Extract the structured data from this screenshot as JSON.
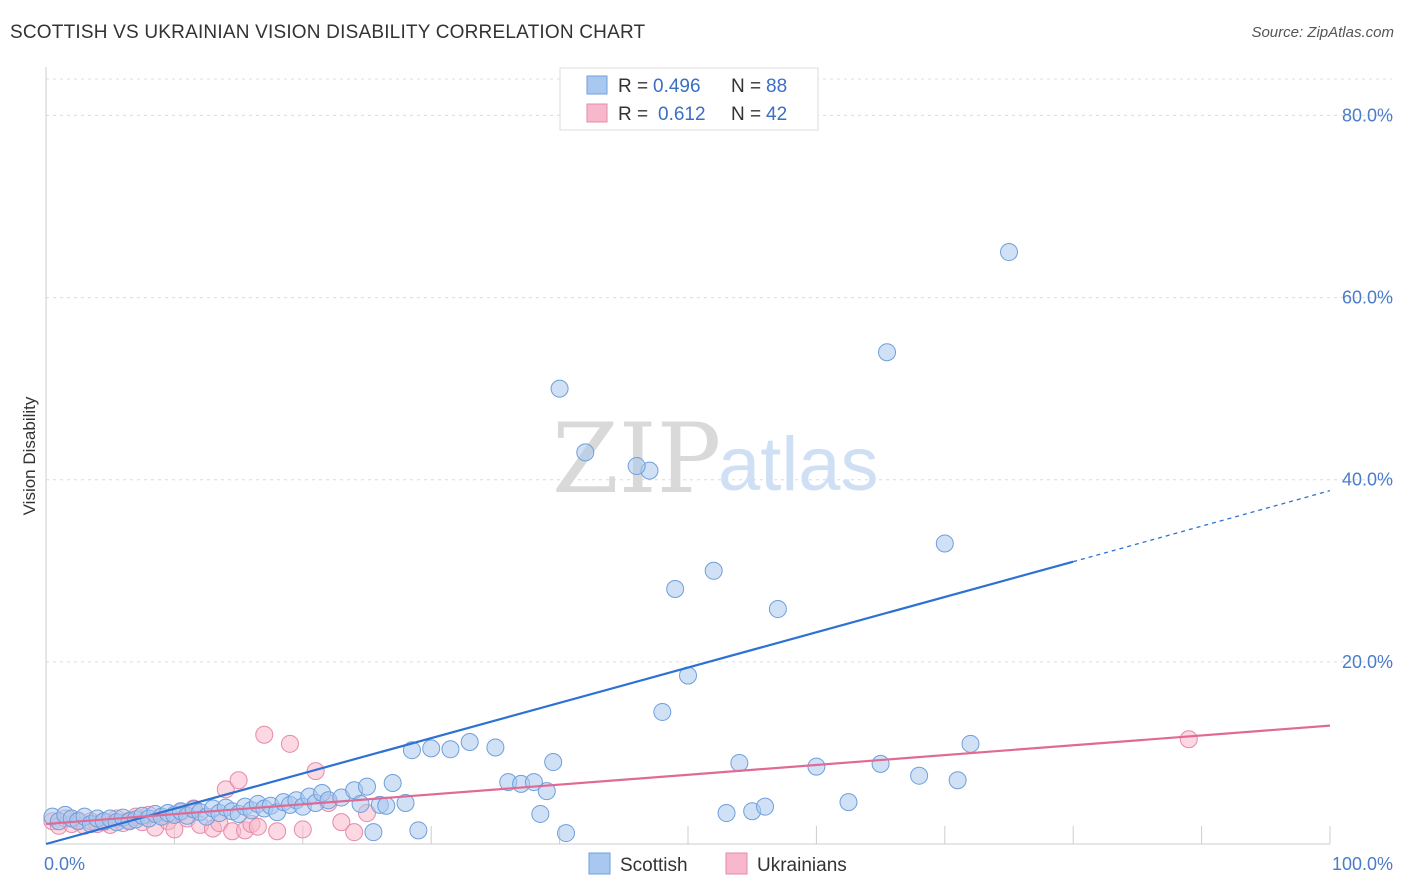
{
  "title": "SCOTTISH VS UKRAINIAN VISION DISABILITY CORRELATION CHART",
  "source": "Source: ZipAtlas.com",
  "watermark": {
    "zip": "ZIP",
    "atlas": "atlas"
  },
  "colors": {
    "scottish_fill": "#a9c8ef",
    "scottish_stroke": "#6e9fdc",
    "scottish_line": "#2d72d2",
    "ukrainian_fill": "#f7b8cb",
    "ukrainian_stroke": "#e68aa8",
    "ukrainian_line": "#e06a94",
    "grid": "#dcdcdc",
    "tick_text": "#4a7cc9"
  },
  "legend_top": {
    "rows": [
      {
        "r_label": "R =",
        "r_value": "0.496",
        "n_label": "N =",
        "n_value": "88"
      },
      {
        "r_label": "R =",
        "r_value": "0.612",
        "n_label": "N =",
        "n_value": "42"
      }
    ]
  },
  "legend_bottom": [
    "Scottish",
    "Ukrainians"
  ],
  "chart_data": {
    "type": "scatter",
    "ylabel": "Vision Disability",
    "xlim": [
      0,
      100
    ],
    "ylim": [
      0,
      84
    ],
    "x_ticks": [
      "0.0%",
      "100.0%"
    ],
    "y_ticks": [
      {
        "value": 20,
        "label": "20.0%"
      },
      {
        "value": 40,
        "label": "40.0%"
      },
      {
        "value": 60,
        "label": "60.0%"
      },
      {
        "value": 80,
        "label": "80.0%"
      }
    ],
    "grid": true,
    "legend_placement": "top-center",
    "series": [
      {
        "name": "Scottish",
        "trend": {
          "x0": 0,
          "y0": 0,
          "x1": 80,
          "y1": 31,
          "x_dash_end": 100,
          "y_dash_end": 38.8
        },
        "points": [
          [
            0.5,
            3
          ],
          [
            1,
            2.5
          ],
          [
            1.5,
            3.2
          ],
          [
            2,
            2.8
          ],
          [
            2.5,
            2.5
          ],
          [
            3,
            3
          ],
          [
            3.5,
            2.2
          ],
          [
            4,
            2.8
          ],
          [
            4.5,
            2.5
          ],
          [
            5,
            2.8
          ],
          [
            5.5,
            2.4
          ],
          [
            6,
            2.9
          ],
          [
            6.5,
            2.5
          ],
          [
            7,
            2.7
          ],
          [
            7.5,
            3.1
          ],
          [
            8,
            2.8
          ],
          [
            8.5,
            3.3
          ],
          [
            9,
            3
          ],
          [
            9.5,
            3.4
          ],
          [
            10,
            3.2
          ],
          [
            10.5,
            3.6
          ],
          [
            11,
            3.1
          ],
          [
            11.5,
            3.8
          ],
          [
            12,
            3.5
          ],
          [
            12.5,
            3
          ],
          [
            13,
            3.9
          ],
          [
            13.5,
            3.4
          ],
          [
            14,
            4
          ],
          [
            14.5,
            3.6
          ],
          [
            15,
            3.3
          ],
          [
            15.5,
            4.1
          ],
          [
            16,
            3.7
          ],
          [
            16.5,
            4.4
          ],
          [
            17,
            3.9
          ],
          [
            17.5,
            4.2
          ],
          [
            18,
            3.5
          ],
          [
            18.5,
            4.6
          ],
          [
            19,
            4.3
          ],
          [
            19.5,
            4.8
          ],
          [
            20,
            4.1
          ],
          [
            20.5,
            5.2
          ],
          [
            21,
            4.5
          ],
          [
            21.5,
            5.6
          ],
          [
            22,
            4.8
          ],
          [
            23,
            5.1
          ],
          [
            24,
            5.9
          ],
          [
            24.5,
            4.4
          ],
          [
            25,
            6.3
          ],
          [
            26,
            4.3
          ],
          [
            26.5,
            4.2
          ],
          [
            27,
            6.7
          ],
          [
            28,
            4.5
          ],
          [
            29,
            1.5
          ],
          [
            30,
            10.5
          ],
          [
            31.5,
            10.4
          ],
          [
            33,
            11.2
          ],
          [
            35,
            10.6
          ],
          [
            36,
            6.8
          ],
          [
            37,
            6.6
          ],
          [
            38,
            6.8
          ],
          [
            39,
            5.8
          ],
          [
            38.5,
            3.3
          ],
          [
            25.5,
            1.3
          ],
          [
            28.5,
            10.3
          ],
          [
            39.5,
            9
          ],
          [
            40,
            50
          ],
          [
            40.5,
            1.2
          ],
          [
            42,
            43
          ],
          [
            47,
            41
          ],
          [
            49,
            28
          ],
          [
            46,
            41.5
          ],
          [
            50,
            18.5
          ],
          [
            48,
            14.5
          ],
          [
            52,
            30
          ],
          [
            53,
            3.4
          ],
          [
            54,
            8.9
          ],
          [
            55,
            3.6
          ],
          [
            56,
            4.1
          ],
          [
            57,
            25.8
          ],
          [
            60,
            8.5
          ],
          [
            62.5,
            4.6
          ],
          [
            65,
            8.8
          ],
          [
            65.5,
            54
          ],
          [
            68,
            7.5
          ],
          [
            70,
            33
          ],
          [
            71,
            7
          ],
          [
            72,
            11
          ],
          [
            75,
            65
          ]
        ]
      },
      {
        "name": "Ukrainians",
        "trend": {
          "x0": 0,
          "y0": 2.2,
          "x1": 100,
          "y1": 13
        },
        "points": [
          [
            0.5,
            2.5
          ],
          [
            1,
            2
          ],
          [
            1.5,
            2.8
          ],
          [
            2,
            2.2
          ],
          [
            2.5,
            2.6
          ],
          [
            3,
            2
          ],
          [
            3.5,
            2.5
          ],
          [
            4,
            2.2
          ],
          [
            4.5,
            2.4
          ],
          [
            5,
            2.1
          ],
          [
            5.5,
            2.8
          ],
          [
            6,
            2.3
          ],
          [
            6.5,
            2.6
          ],
          [
            7,
            3
          ],
          [
            7.5,
            2.4
          ],
          [
            8,
            3.2
          ],
          [
            8.5,
            1.8
          ],
          [
            9,
            3
          ],
          [
            9.5,
            2.5
          ],
          [
            10,
            1.6
          ],
          [
            10.5,
            3.5
          ],
          [
            11,
            2.8
          ],
          [
            11.5,
            3.9
          ],
          [
            12,
            2.1
          ],
          [
            13,
            1.7
          ],
          [
            13.5,
            2.3
          ],
          [
            14,
            6
          ],
          [
            14.5,
            1.4
          ],
          [
            15,
            7
          ],
          [
            15.5,
            1.5
          ],
          [
            16,
            2.2
          ],
          [
            16.5,
            1.9
          ],
          [
            17,
            12
          ],
          [
            18,
            1.4
          ],
          [
            19,
            11
          ],
          [
            20,
            1.6
          ],
          [
            21,
            8
          ],
          [
            22,
            4.5
          ],
          [
            23,
            2.4
          ],
          [
            24,
            1.3
          ],
          [
            25,
            3.4
          ],
          [
            89,
            11.5
          ]
        ]
      }
    ]
  }
}
